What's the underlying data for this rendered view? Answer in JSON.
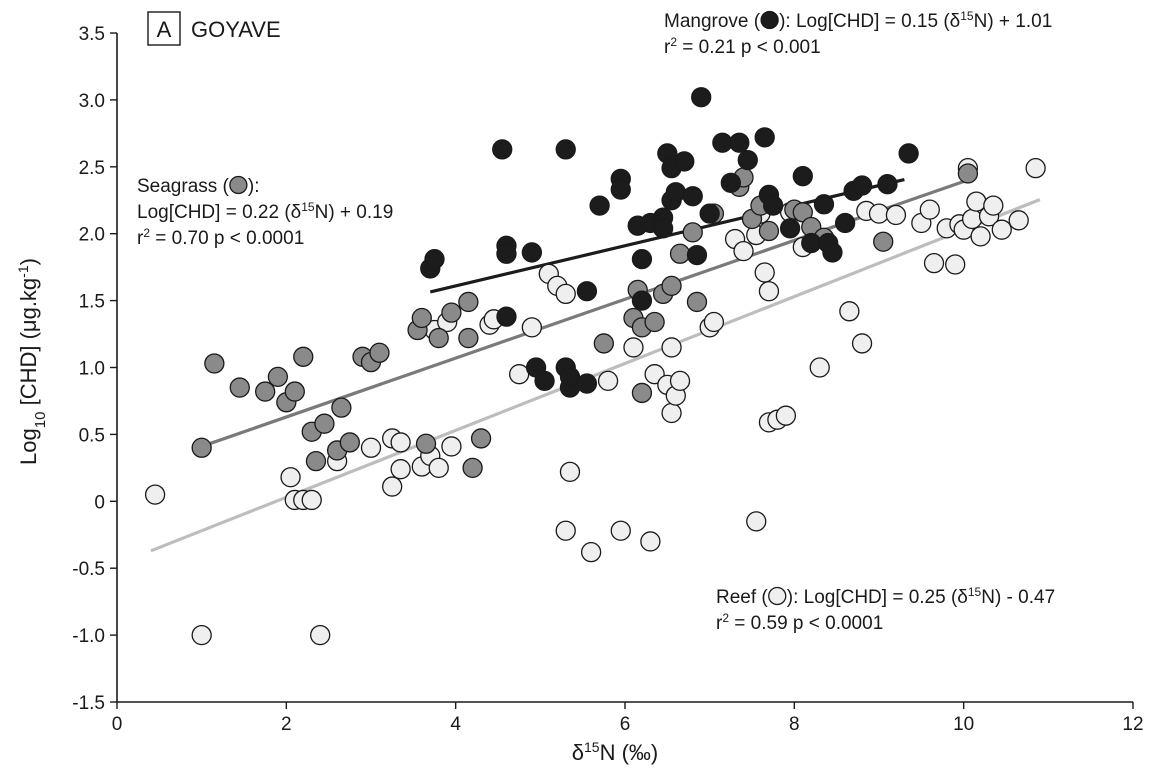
{
  "chart_data": {
    "type": "scatter",
    "panel": {
      "letter": "A",
      "label": "GOYAVE"
    },
    "xlabel": {
      "delta": "δ",
      "sup": "15",
      "rest": "N (‰)"
    },
    "ylabel": {
      "pre": "Log",
      "sub": "10",
      "mid": " [CHD] (μg.kg",
      "sup": "-1",
      "post": ")"
    },
    "xlim": [
      0,
      12
    ],
    "ylim": [
      -1.5,
      3.5
    ],
    "x_ticks": [
      0,
      2,
      4,
      6,
      8,
      10,
      12
    ],
    "y_ticks": [
      -1.5,
      -1.0,
      -0.5,
      0,
      0.5,
      1.0,
      1.5,
      2.0,
      2.5,
      3.0,
      3.5
    ],
    "x_tick_labels": [
      "0",
      "2",
      "4",
      "6",
      "8",
      "10",
      "12"
    ],
    "y_tick_labels": [
      "-1.5",
      "-1.0",
      "-0.5",
      "0",
      "0.5",
      "1.0",
      "1.5",
      "2.0",
      "2.5",
      "3.0",
      "3.5"
    ],
    "grid": false,
    "colors": {
      "mangrove": "#1c1c1c",
      "seagrass": "#8a8a8a",
      "reef": "#efefef",
      "stroke": "#1a1a1a",
      "mangrove_line": "#1c1c1c",
      "seagrass_line": "#7a7a7a",
      "reef_line": "#bdbdbd"
    },
    "series": [
      {
        "key": "mangrove",
        "fill": "#1c1c1c",
        "line": {
          "slope": 0.15,
          "intercept": 1.01,
          "x": [
            3.7,
            9.3
          ],
          "color": "#1c1c1c"
        },
        "annotation": {
          "lines": [
            [
              {
                "t": "Mangrove ("
              },
              {
                "marker": true
              },
              {
                "t": "): Log[CHD] = 0.15 (δ"
              },
              {
                "t": "15",
                "sup": true
              },
              {
                "t": "N) + 1.01"
              }
            ],
            [
              {
                "t": "r"
              },
              {
                "t": "2",
                "sup": true
              },
              {
                "t": " = 0.21   p < 0.001"
              }
            ]
          ]
        },
        "points": [
          [
            3.7,
            1.74
          ],
          [
            3.75,
            1.81
          ],
          [
            4.55,
            2.63
          ],
          [
            4.6,
            1.91
          ],
          [
            4.6,
            1.85
          ],
          [
            4.6,
            1.38
          ],
          [
            4.9,
            1.86
          ],
          [
            4.95,
            1.0
          ],
          [
            5.05,
            0.9
          ],
          [
            5.3,
            2.63
          ],
          [
            5.3,
            1.0
          ],
          [
            5.35,
            0.85
          ],
          [
            5.35,
            0.93
          ],
          [
            5.55,
            0.88
          ],
          [
            5.55,
            1.57
          ],
          [
            5.7,
            2.21
          ],
          [
            5.95,
            2.41
          ],
          [
            5.95,
            2.33
          ],
          [
            6.15,
            2.06
          ],
          [
            6.2,
            1.81
          ],
          [
            6.2,
            1.5
          ],
          [
            6.3,
            2.08
          ],
          [
            6.45,
            2.12
          ],
          [
            6.45,
            2.04
          ],
          [
            6.5,
            2.6
          ],
          [
            6.55,
            2.49
          ],
          [
            6.55,
            2.25
          ],
          [
            6.6,
            2.31
          ],
          [
            6.7,
            2.54
          ],
          [
            6.8,
            2.28
          ],
          [
            6.85,
            1.84
          ],
          [
            6.9,
            3.02
          ],
          [
            7.0,
            2.15
          ],
          [
            7.15,
            2.68
          ],
          [
            7.25,
            2.38
          ],
          [
            7.35,
            2.68
          ],
          [
            7.45,
            2.55
          ],
          [
            7.65,
            2.72
          ],
          [
            7.7,
            2.29
          ],
          [
            7.75,
            2.21
          ],
          [
            7.95,
            2.04
          ],
          [
            8.1,
            2.43
          ],
          [
            8.2,
            1.93
          ],
          [
            8.35,
            2.22
          ],
          [
            8.4,
            1.93
          ],
          [
            8.45,
            1.86
          ],
          [
            8.6,
            2.08
          ],
          [
            8.7,
            2.32
          ],
          [
            8.8,
            2.36
          ],
          [
            9.1,
            2.37
          ],
          [
            9.35,
            2.6
          ]
        ]
      },
      {
        "key": "seagrass",
        "fill": "#8a8a8a",
        "line": {
          "slope": 0.22,
          "intercept": 0.19,
          "x": [
            1.0,
            10.0
          ],
          "color": "#7a7a7a"
        },
        "annotation": {
          "lines": [
            [
              {
                "t": "Seagrass ("
              },
              {
                "marker": true
              },
              {
                "t": "):"
              }
            ],
            [
              {
                "t": "Log[CHD] = 0.22 (δ"
              },
              {
                "t": "15",
                "sup": true
              },
              {
                "t": "N) + 0.19"
              }
            ],
            [
              {
                "t": "r"
              },
              {
                "t": "2",
                "sup": true
              },
              {
                "t": " = 0.70   p < 0.0001"
              }
            ]
          ]
        },
        "points": [
          [
            1.0,
            0.4
          ],
          [
            1.15,
            1.03
          ],
          [
            1.45,
            0.85
          ],
          [
            1.75,
            0.82
          ],
          [
            1.9,
            0.93
          ],
          [
            2.0,
            0.74
          ],
          [
            2.1,
            0.82
          ],
          [
            2.2,
            1.08
          ],
          [
            2.3,
            0.52
          ],
          [
            2.35,
            0.3
          ],
          [
            2.45,
            0.58
          ],
          [
            2.6,
            0.38
          ],
          [
            2.65,
            0.7
          ],
          [
            2.75,
            0.44
          ],
          [
            2.9,
            1.08
          ],
          [
            3.0,
            1.04
          ],
          [
            3.1,
            1.11
          ],
          [
            3.55,
            1.28
          ],
          [
            3.6,
            1.37
          ],
          [
            3.65,
            0.43
          ],
          [
            3.8,
            1.22
          ],
          [
            3.95,
            1.41
          ],
          [
            4.15,
            1.49
          ],
          [
            4.15,
            1.22
          ],
          [
            4.2,
            0.25
          ],
          [
            4.3,
            0.47
          ],
          [
            5.75,
            1.18
          ],
          [
            6.1,
            1.37
          ],
          [
            6.15,
            1.58
          ],
          [
            6.2,
            0.81
          ],
          [
            6.2,
            1.3
          ],
          [
            6.35,
            1.34
          ],
          [
            6.45,
            1.55
          ],
          [
            6.55,
            1.61
          ],
          [
            6.65,
            1.85
          ],
          [
            6.8,
            2.01
          ],
          [
            6.85,
            1.49
          ],
          [
            7.05,
            2.15
          ],
          [
            7.35,
            2.35
          ],
          [
            7.4,
            2.42
          ],
          [
            7.5,
            2.11
          ],
          [
            7.6,
            2.21
          ],
          [
            7.7,
            2.02
          ],
          [
            8.0,
            2.18
          ],
          [
            8.1,
            2.16
          ],
          [
            8.2,
            2.05
          ],
          [
            8.35,
            1.97
          ],
          [
            9.05,
            1.94
          ],
          [
            10.05,
            2.45
          ]
        ]
      },
      {
        "key": "reef",
        "fill": "#efefef",
        "line": {
          "slope": 0.25,
          "intercept": -0.47,
          "x": [
            0.4,
            10.9
          ],
          "color": "#bdbdbd"
        },
        "annotation": {
          "lines": [
            [
              {
                "t": "Reef ("
              },
              {
                "marker": true
              },
              {
                "t": "): Log[CHD] = 0.25 (δ"
              },
              {
                "t": "15",
                "sup": true
              },
              {
                "t": "N) - 0.47"
              }
            ],
            [
              {
                "t": "r"
              },
              {
                "t": "2",
                "sup": true
              },
              {
                "t": " = 0.59   p < 0.0001"
              }
            ]
          ]
        },
        "points": [
          [
            0.45,
            0.05
          ],
          [
            1.0,
            -1.0
          ],
          [
            2.05,
            0.18
          ],
          [
            2.1,
            0.01
          ],
          [
            2.2,
            0.01
          ],
          [
            2.3,
            0.01
          ],
          [
            2.4,
            -1.0
          ],
          [
            2.6,
            0.3
          ],
          [
            3.0,
            0.4
          ],
          [
            3.25,
            0.47
          ],
          [
            3.25,
            0.11
          ],
          [
            3.35,
            0.24
          ],
          [
            3.35,
            0.44
          ],
          [
            3.6,
            0.26
          ],
          [
            3.7,
            0.34
          ],
          [
            3.8,
            0.25
          ],
          [
            3.75,
            1.28
          ],
          [
            3.9,
            1.34
          ],
          [
            3.95,
            0.41
          ],
          [
            4.4,
            1.32
          ],
          [
            4.45,
            1.36
          ],
          [
            4.75,
            0.95
          ],
          [
            4.9,
            1.3
          ],
          [
            5.1,
            1.7
          ],
          [
            5.2,
            1.61
          ],
          [
            5.3,
            1.55
          ],
          [
            5.3,
            -0.22
          ],
          [
            5.35,
            0.22
          ],
          [
            5.6,
            -0.38
          ],
          [
            5.8,
            0.9
          ],
          [
            5.95,
            -0.22
          ],
          [
            6.1,
            1.15
          ],
          [
            6.3,
            -0.3
          ],
          [
            6.35,
            0.95
          ],
          [
            6.5,
            0.87
          ],
          [
            6.55,
            1.15
          ],
          [
            6.55,
            0.66
          ],
          [
            6.6,
            0.79
          ],
          [
            6.65,
            0.9
          ],
          [
            7.0,
            1.3
          ],
          [
            7.05,
            1.34
          ],
          [
            7.3,
            1.96
          ],
          [
            7.4,
            1.87
          ],
          [
            7.55,
            1.99
          ],
          [
            7.55,
            -0.15
          ],
          [
            7.6,
            2.15
          ],
          [
            7.65,
            1.71
          ],
          [
            7.7,
            1.57
          ],
          [
            7.7,
            0.59
          ],
          [
            7.8,
            0.61
          ],
          [
            7.9,
            0.64
          ],
          [
            7.95,
            2.16
          ],
          [
            8.1,
            1.9
          ],
          [
            8.3,
            1.0
          ],
          [
            8.65,
            1.42
          ],
          [
            8.8,
            1.18
          ],
          [
            8.85,
            2.17
          ],
          [
            9.0,
            2.15
          ],
          [
            9.2,
            2.14
          ],
          [
            9.5,
            2.08
          ],
          [
            9.6,
            2.18
          ],
          [
            9.65,
            1.78
          ],
          [
            9.8,
            2.04
          ],
          [
            9.9,
            1.77
          ],
          [
            9.95,
            2.07
          ],
          [
            10.0,
            2.03
          ],
          [
            10.05,
            2.49
          ],
          [
            10.1,
            2.11
          ],
          [
            10.15,
            2.24
          ],
          [
            10.2,
            1.98
          ],
          [
            10.3,
            2.13
          ],
          [
            10.35,
            2.21
          ],
          [
            10.45,
            2.03
          ],
          [
            10.65,
            2.1
          ],
          [
            10.85,
            2.49
          ]
        ]
      }
    ]
  }
}
